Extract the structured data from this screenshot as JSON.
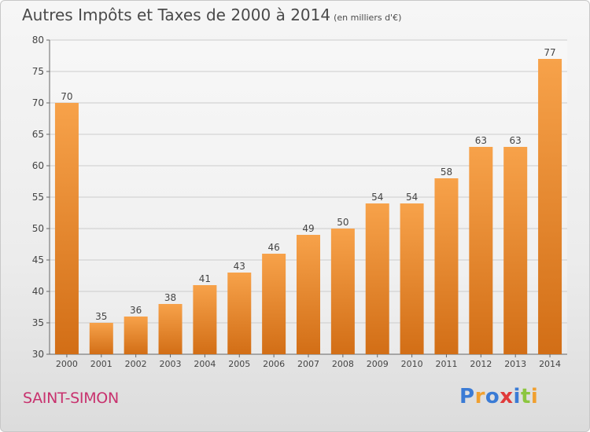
{
  "header": {
    "title": "Autres Impôts et Taxes de 2000 à 2014",
    "unit": "(en milliers d'€)"
  },
  "footer": {
    "commune": "SAINT-SIMON",
    "logo_text": "Proxiti"
  },
  "colors": {
    "bar_light": "#f7a24a",
    "bar_dark": "#d26e16",
    "grid": "#cccccc",
    "commune": "#c8326e",
    "logo": [
      "#3a7bd5",
      "#f0a030",
      "#3a7bd5",
      "#e03a3a",
      "#3a7bd5",
      "#8cc63f",
      "#f0a030"
    ]
  },
  "chart_data": {
    "type": "bar",
    "categories": [
      "2000",
      "2001",
      "2002",
      "2003",
      "2004",
      "2005",
      "2006",
      "2007",
      "2008",
      "2009",
      "2010",
      "2011",
      "2012",
      "2013",
      "2014"
    ],
    "values": [
      70,
      35,
      36,
      38,
      41,
      43,
      46,
      49,
      50,
      54,
      54,
      58,
      63,
      63,
      77
    ],
    "yticks": [
      30,
      35,
      40,
      45,
      50,
      55,
      60,
      65,
      70,
      75,
      80
    ],
    "ylim": [
      30,
      80
    ],
    "grid": true,
    "data_labels": true
  }
}
